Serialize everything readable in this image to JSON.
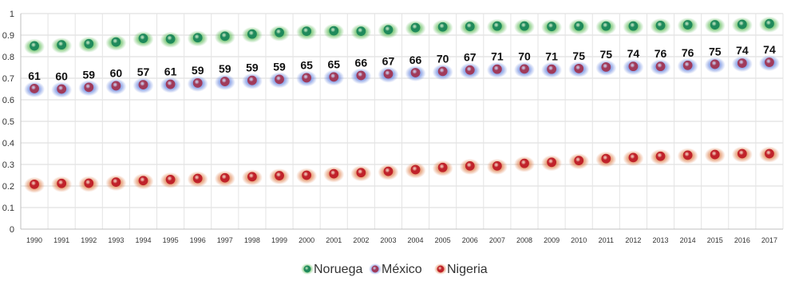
{
  "chart_data": {
    "type": "scatter",
    "title": "",
    "xlabel": "",
    "ylabel": "",
    "ylim": [
      0,
      1
    ],
    "y_ticks": [
      "0",
      "0.1",
      "0.2",
      "0.3",
      "0.4",
      "0.5",
      "0.6",
      "0.7",
      "0.8",
      "0.9",
      "1"
    ],
    "grid": true,
    "legend_position": "bottom",
    "categories": [
      "1990",
      "1991",
      "1992",
      "1993",
      "1994",
      "1995",
      "1996",
      "1997",
      "1998",
      "1999",
      "2000",
      "2001",
      "2002",
      "2003",
      "2004",
      "2005",
      "2006",
      "2007",
      "2008",
      "2009",
      "2010",
      "2011",
      "2012",
      "2013",
      "2014",
      "2015",
      "2016",
      "2017"
    ],
    "series": [
      {
        "name": "Noruega",
        "color": "#1f8a5b",
        "glow": "#3fae3a",
        "values": [
          0.85,
          0.855,
          0.86,
          0.868,
          0.885,
          0.882,
          0.888,
          0.895,
          0.905,
          0.912,
          0.918,
          0.92,
          0.918,
          0.925,
          0.935,
          0.938,
          0.94,
          0.942,
          0.942,
          0.94,
          0.942,
          0.942,
          0.942,
          0.945,
          0.948,
          0.948,
          0.95,
          0.953
        ]
      },
      {
        "name": "México",
        "color": "#a03a5a",
        "glow": "#4a6ed8",
        "values": [
          0.652,
          0.65,
          0.658,
          0.665,
          0.67,
          0.672,
          0.678,
          0.685,
          0.69,
          0.695,
          0.702,
          0.706,
          0.713,
          0.72,
          0.726,
          0.732,
          0.738,
          0.742,
          0.743,
          0.742,
          0.745,
          0.752,
          0.755,
          0.755,
          0.76,
          0.765,
          0.77,
          0.774
        ],
        "data_labels": [
          "61",
          "60",
          "59",
          "60",
          "57",
          "61",
          "59",
          "59",
          "59",
          "59",
          "65",
          "65",
          "66",
          "67",
          "66",
          "70",
          "67",
          "71",
          "70",
          "71",
          "75",
          "75",
          "74",
          "76",
          "76",
          "75",
          "74",
          "74"
        ]
      },
      {
        "name": "Nigeria",
        "color": "#c0222a",
        "glow": "#d9672a",
        "values": [
          0.208,
          0.212,
          0.213,
          0.218,
          0.225,
          0.23,
          0.235,
          0.238,
          0.243,
          0.248,
          0.25,
          0.257,
          0.262,
          0.268,
          0.276,
          0.286,
          0.293,
          0.293,
          0.305,
          0.31,
          0.318,
          0.327,
          0.332,
          0.338,
          0.343,
          0.346,
          0.35,
          0.35
        ]
      }
    ]
  }
}
